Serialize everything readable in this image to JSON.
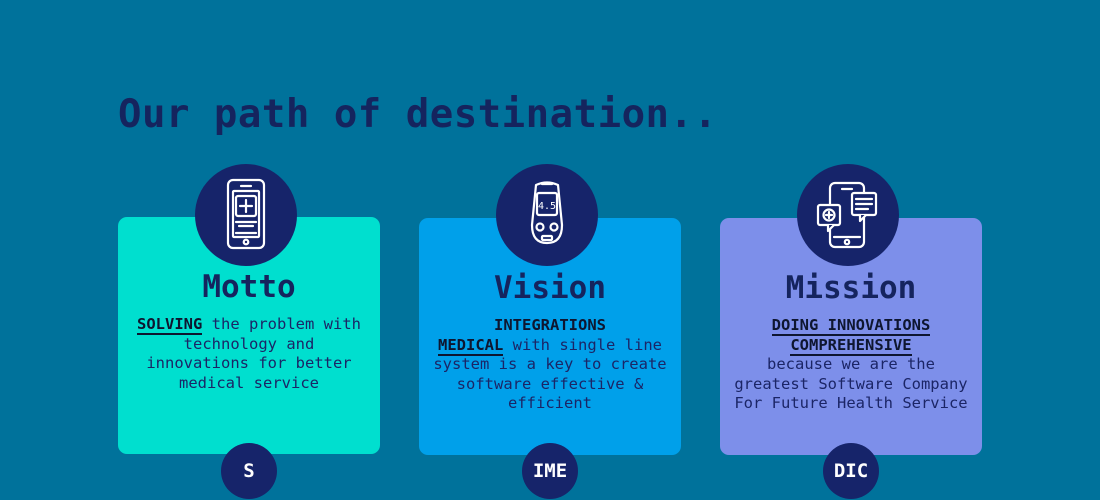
{
  "heading": "Our path of destination..",
  "cards": [
    {
      "title": "Motto",
      "keyword": "SOLVING",
      "text_after_keyword": " the problem with technology and innovations for better medical service",
      "badge": "S",
      "icon": "smartphone-medical-icon"
    },
    {
      "title": "Vision",
      "keyword_line1": "INTEGRATIONS",
      "keyword_line2": "MEDICAL",
      "text_after_keyword": " with single line system is a key to create software effective & efficient",
      "badge": "IME",
      "icon": "glucose-meter-icon"
    },
    {
      "title": "Mission",
      "keyword_line1": "DOING INNOVATIONS",
      "keyword_line2": "COMPREHENSIVE",
      "text_after_keyword": "because we are the greatest Software Company For Future Health Service",
      "badge": "DIC",
      "icon": "telemedicine-icon"
    }
  ],
  "colors": {
    "background": "#00729b",
    "navy": "#16246a",
    "card_motto": "#00dfcf",
    "card_vision": "#00a0ea",
    "card_mission": "#7d8fea"
  }
}
